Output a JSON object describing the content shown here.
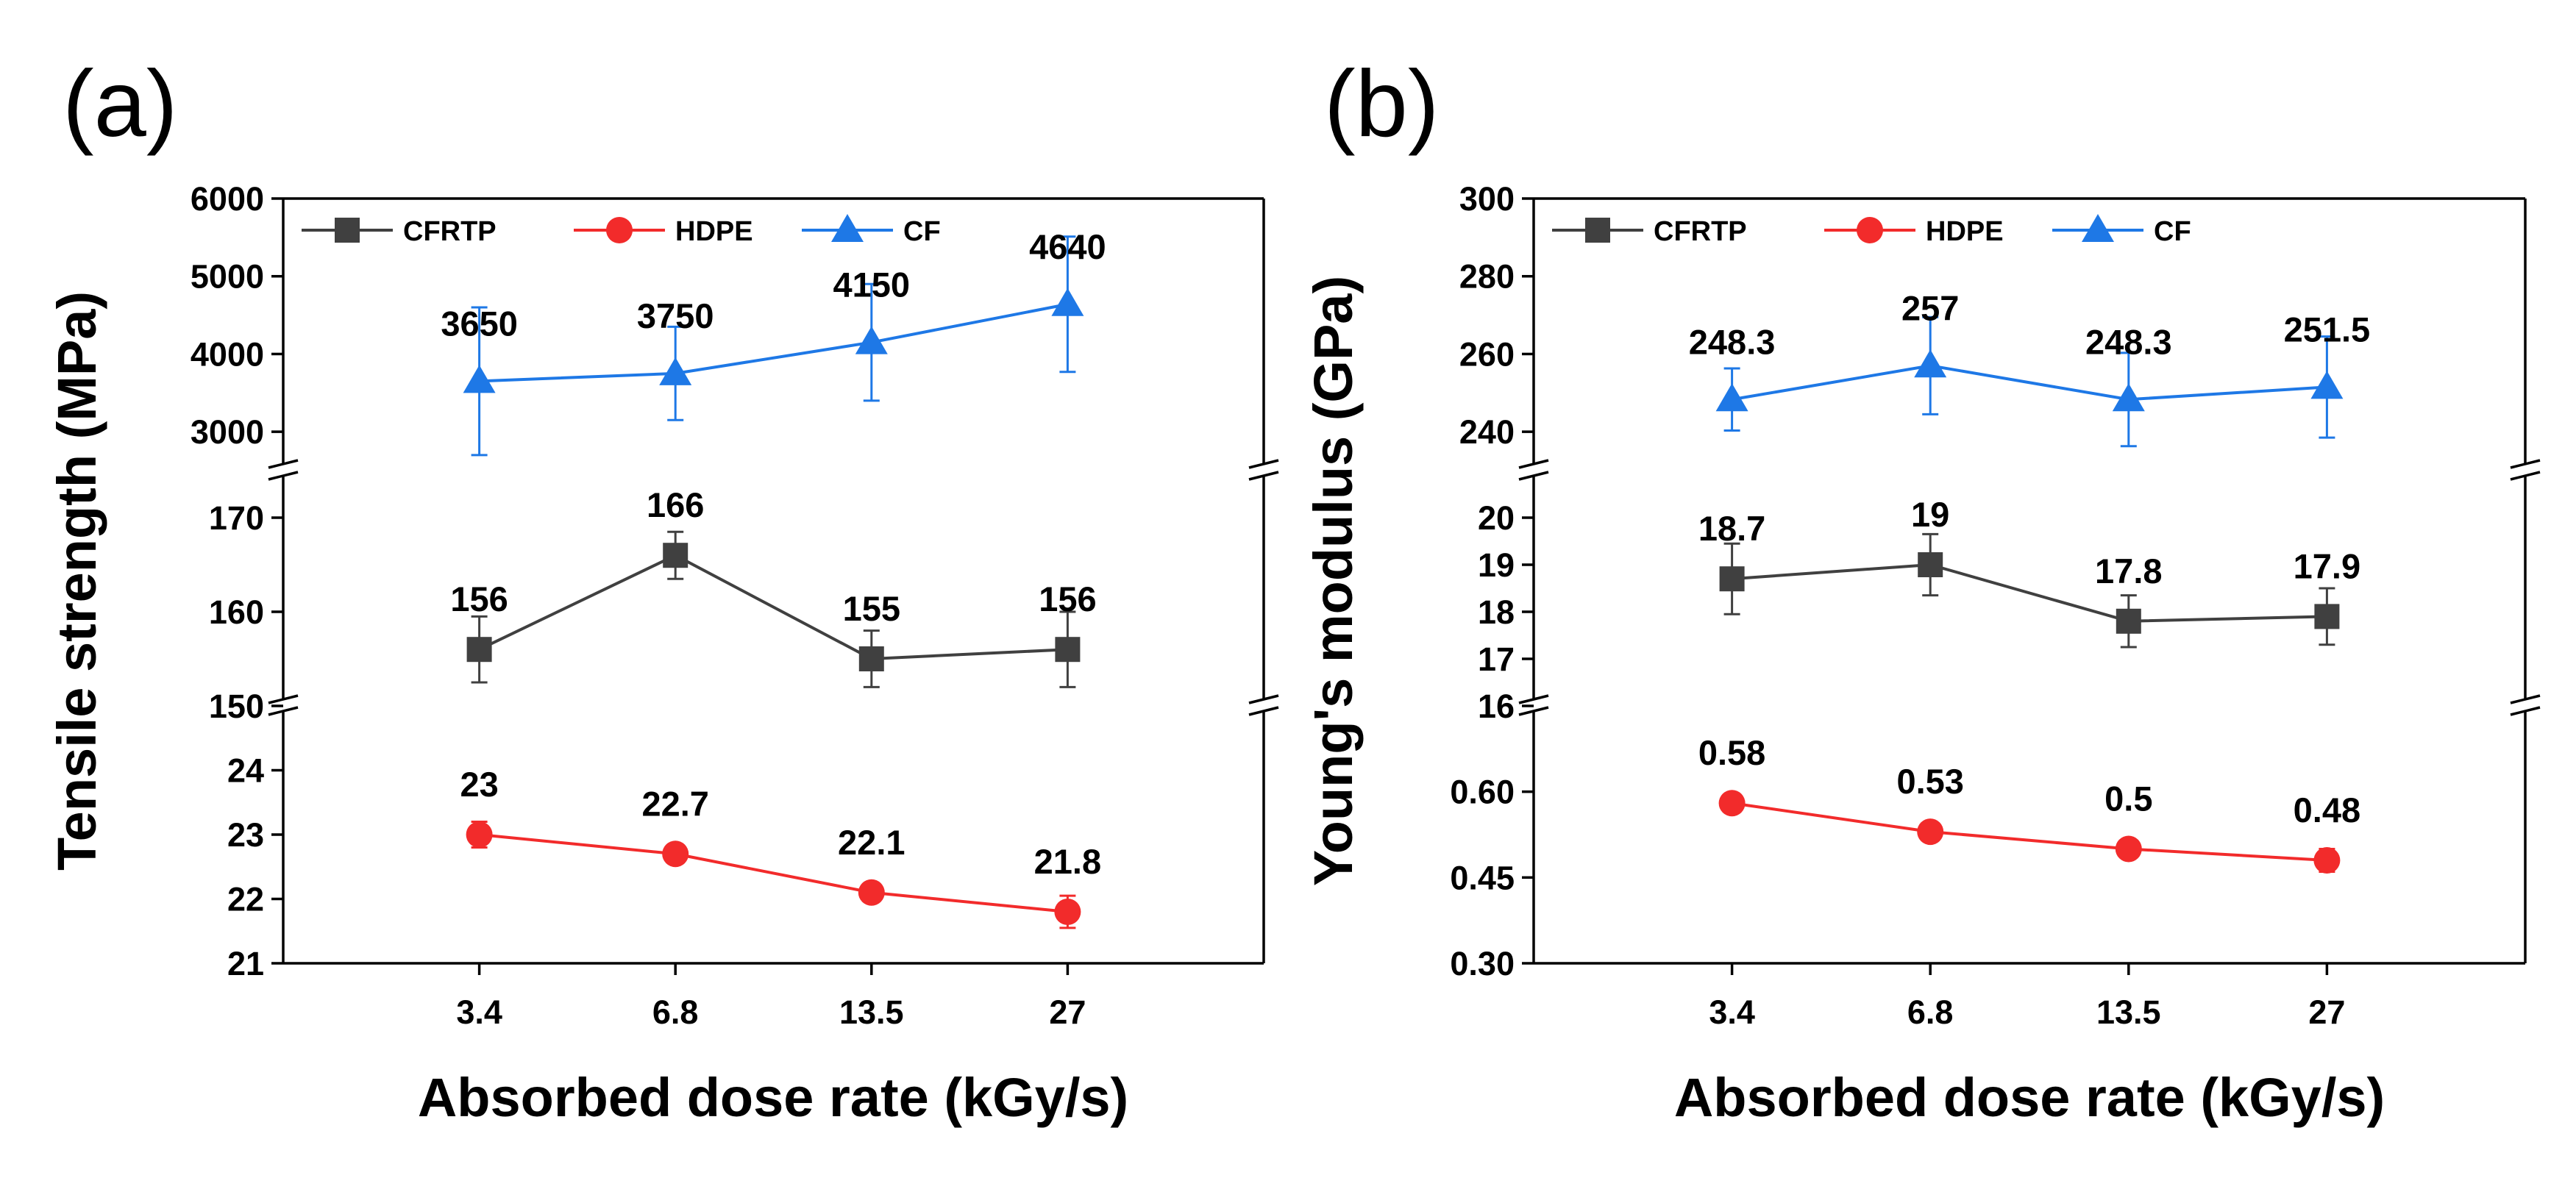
{
  "figure": {
    "colors": {
      "axis": "#000000",
      "CFRTP": "#404040",
      "HDPE": "#f22b2b",
      "CF": "#1e78e6"
    }
  },
  "chart_data": [
    {
      "panel_label": "(a)",
      "type": "line",
      "xlabel": "Absorbed dose rate (kGy/s)",
      "ylabel": "Tensile strength (MPa)",
      "categories": [
        "3.4",
        "6.8",
        "13.5",
        "27"
      ],
      "legend": [
        "CFRTP",
        "HDPE",
        "CF"
      ],
      "legend_position": "top-left",
      "segments": [
        {
          "id": "bottom",
          "range": [
            21,
            25
          ],
          "ticks": [
            "21",
            "22",
            "23",
            "24"
          ],
          "tick_values": [
            21,
            22,
            23,
            24
          ]
        },
        {
          "id": "middle",
          "range": [
            150,
            175
          ],
          "ticks": [
            "150",
            "160",
            "170"
          ],
          "tick_values": [
            150,
            160,
            170
          ]
        },
        {
          "id": "top",
          "range": [
            2500,
            6000
          ],
          "ticks": [
            "3000",
            "4000",
            "5000",
            "6000"
          ],
          "tick_values": [
            3000,
            4000,
            5000,
            6000
          ]
        }
      ],
      "series": [
        {
          "name": "CFRTP",
          "segment": "middle",
          "marker": "square",
          "values": [
            156,
            166,
            155,
            156
          ],
          "labels": [
            "156",
            "166",
            "155",
            "156"
          ],
          "errors": [
            3.5,
            2.5,
            3,
            4
          ]
        },
        {
          "name": "HDPE",
          "segment": "bottom",
          "marker": "circle",
          "values": [
            23,
            22.7,
            22.1,
            21.8
          ],
          "labels": [
            "23",
            "22.7",
            "22.1",
            "21.8"
          ],
          "errors": [
            0.2,
            0.1,
            0.1,
            0.25
          ]
        },
        {
          "name": "CF",
          "segment": "top",
          "marker": "triangle",
          "values": [
            3650,
            3750,
            4150,
            4640
          ],
          "labels": [
            "3650",
            "3750",
            "4150",
            "4640"
          ],
          "errors": [
            950,
            600,
            750,
            870
          ]
        }
      ]
    },
    {
      "panel_label": "(b)",
      "type": "line",
      "xlabel": "Absorbed dose rate (kGy/s)",
      "ylabel": "Young's modulus (GPa)",
      "categories": [
        "3.4",
        "6.8",
        "13.5",
        "27"
      ],
      "legend": [
        "CFRTP",
        "HDPE",
        "CF"
      ],
      "legend_position": "top-left",
      "segments": [
        {
          "id": "bottom",
          "range": [
            0.3,
            0.75
          ],
          "ticks": [
            "0.30",
            "0.45",
            "0.60"
          ],
          "tick_values": [
            0.3,
            0.45,
            0.6
          ]
        },
        {
          "id": "middle",
          "range": [
            16,
            21
          ],
          "ticks": [
            "16",
            "17",
            "18",
            "19",
            "20"
          ],
          "tick_values": [
            16,
            17,
            18,
            19,
            20
          ]
        },
        {
          "id": "top",
          "range": [
            230,
            300
          ],
          "ticks": [
            "240",
            "260",
            "280",
            "300"
          ],
          "tick_values": [
            240,
            260,
            280,
            300
          ]
        }
      ],
      "series": [
        {
          "name": "CFRTP",
          "segment": "middle",
          "marker": "square",
          "values": [
            18.7,
            19,
            17.8,
            17.9
          ],
          "labels": [
            "18.7",
            "19",
            "17.8",
            "17.9"
          ],
          "errors": [
            0.75,
            0.65,
            0.55,
            0.6
          ]
        },
        {
          "name": "HDPE",
          "segment": "bottom",
          "marker": "circle",
          "values": [
            0.58,
            0.53,
            0.5,
            0.48
          ],
          "labels": [
            "0.58",
            "0.53",
            "0.5",
            "0.48"
          ],
          "errors": [
            0.01,
            0.01,
            0.01,
            0.02
          ]
        },
        {
          "name": "CF",
          "segment": "top",
          "marker": "triangle",
          "values": [
            248.3,
            257,
            248.3,
            251.5
          ],
          "labels": [
            "248.3",
            "257",
            "248.3",
            "251.5"
          ],
          "errors": [
            8,
            12.5,
            12,
            13
          ]
        }
      ]
    }
  ]
}
